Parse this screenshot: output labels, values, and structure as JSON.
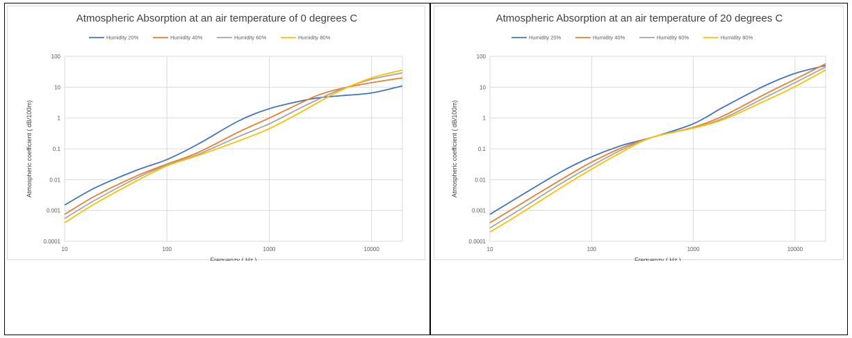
{
  "chart_data": [
    {
      "type": "line",
      "title": "Atmospheric Absorption at an air temperature of 0 degrees C",
      "xlabel": "Frequenzy ( Hz )",
      "ylabel": "Atmospheric coefficient ( dB/100m)",
      "x_scale": "log",
      "y_scale": "log",
      "xlim": [
        10,
        20000
      ],
      "ylim": [
        0.0001,
        100
      ],
      "x_ticks": [
        "10",
        "100",
        "1000",
        "10000"
      ],
      "y_ticks": [
        "100",
        "10",
        "1",
        "0.1",
        "0.01",
        "0.001",
        "0.0001"
      ],
      "grid": true,
      "legend_position": "top",
      "x": [
        10,
        20,
        50,
        100,
        200,
        500,
        1000,
        2000,
        3000,
        5000,
        10000,
        20000
      ],
      "series": [
        {
          "name": "Humidity 20%",
          "color": "#4472C4",
          "values": [
            0.0015,
            0.0055,
            0.02,
            0.045,
            0.14,
            0.8,
            2.0,
            3.5,
            4.5,
            5.3,
            6.5,
            11
          ]
        },
        {
          "name": "Humidity 40%",
          "color": "#ED7D31",
          "values": [
            0.00075,
            0.003,
            0.013,
            0.032,
            0.075,
            0.35,
            1.0,
            3.0,
            5.5,
            9.0,
            14,
            20
          ]
        },
        {
          "name": "Humidity 60%",
          "color": "#A5A5A5",
          "values": [
            0.00055,
            0.0022,
            0.011,
            0.03,
            0.065,
            0.25,
            0.65,
            2.1,
            4.0,
            8.5,
            18,
            29
          ]
        },
        {
          "name": "Humidity 80%",
          "color": "#FFC000",
          "values": [
            0.0004,
            0.0017,
            0.009,
            0.028,
            0.06,
            0.18,
            0.45,
            1.5,
            3.2,
            7.8,
            20,
            36
          ]
        }
      ]
    },
    {
      "type": "line",
      "title": "Atmospheric Absorption at an air temperature of 20 degrees C",
      "xlabel": "Frequenzy ( Hz )",
      "ylabel": "Atmospheric coefficient ( dB/100m)",
      "x_scale": "log",
      "y_scale": "log",
      "xlim": [
        10,
        20000
      ],
      "ylim": [
        0.0001,
        100
      ],
      "x_ticks": [
        "10",
        "100",
        "1000",
        "10000"
      ],
      "y_ticks": [
        "100",
        "10",
        "1",
        "0.1",
        "0.01",
        "0.001",
        "0.0001"
      ],
      "grid": true,
      "legend_position": "top",
      "x": [
        10,
        20,
        50,
        100,
        200,
        400,
        1000,
        2000,
        5000,
        10000,
        20000
      ],
      "series": [
        {
          "name": "Humidity 20%",
          "color": "#4472C4",
          "values": [
            0.00075,
            0.003,
            0.018,
            0.055,
            0.13,
            0.24,
            0.65,
            2.3,
            11,
            28,
            50
          ]
        },
        {
          "name": "Humidity 40%",
          "color": "#ED7D31",
          "values": [
            0.0004,
            0.0016,
            0.01,
            0.037,
            0.11,
            0.24,
            0.5,
            1.2,
            5.8,
            18,
            57
          ]
        },
        {
          "name": "Humidity 60%",
          "color": "#A5A5A5",
          "values": [
            0.00027,
            0.0011,
            0.0075,
            0.028,
            0.095,
            0.24,
            0.48,
            1.0,
            4.5,
            14,
            45
          ]
        },
        {
          "name": "Humidity 80%",
          "color": "#FFC000",
          "values": [
            0.0002,
            0.0008,
            0.0055,
            0.022,
            0.08,
            0.24,
            0.47,
            0.9,
            3.5,
            10.5,
            36
          ]
        }
      ]
    }
  ]
}
